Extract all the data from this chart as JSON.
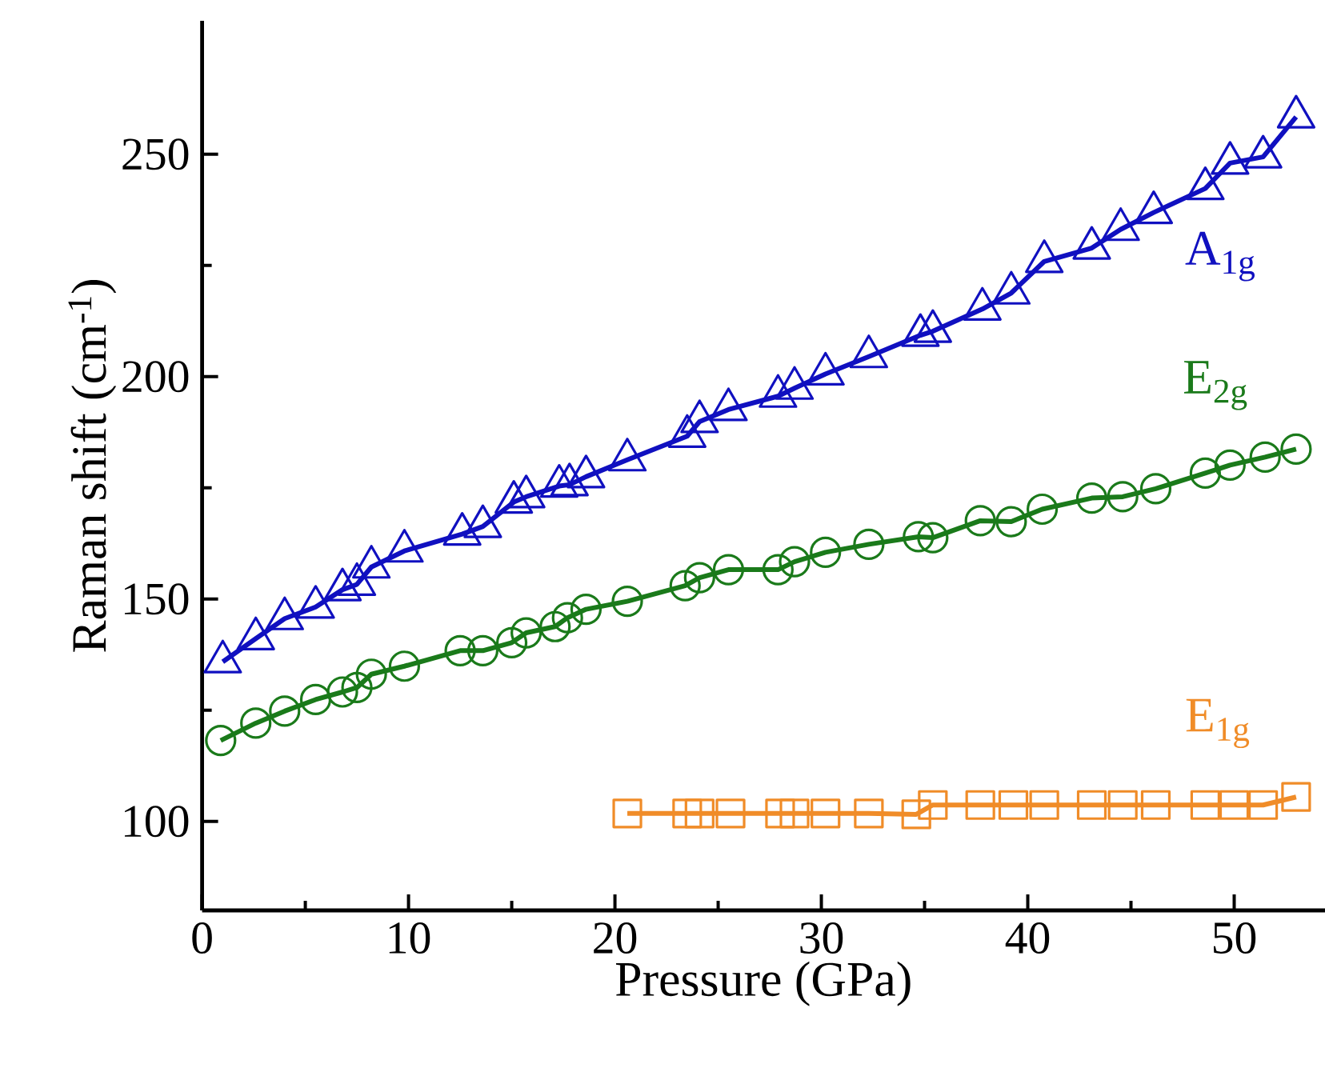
{
  "chart_data": {
    "type": "line",
    "xlabel": "Pressure (GPa)",
    "ylabel": "Raman shift (cm$^{-1}$)",
    "xlim": [
      0,
      54.4
    ],
    "ylim": [
      80,
      280
    ],
    "xticks": [
      0,
      10,
      20,
      30,
      40,
      50
    ],
    "yticks": [
      100,
      150,
      200,
      250
    ],
    "grid": false,
    "line_style": "solid",
    "series": [
      {
        "name": "A$_{1g}$",
        "color": "#1010c0",
        "marker": "triangle",
        "x": [
          1.0,
          2.6,
          4.0,
          5.5,
          6.8,
          7.5,
          8.2,
          9.8,
          12.6,
          13.6,
          15.1,
          15.7,
          17.3,
          17.8,
          18.6,
          20.6,
          23.5,
          24.1,
          25.5,
          27.9,
          28.7,
          30.2,
          32.3,
          34.8,
          35.4,
          37.8,
          39.2,
          40.8,
          43.1,
          44.5,
          46.1,
          48.6,
          49.8,
          51.4,
          53.0
        ],
        "values": [
          135.9,
          141.1,
          145.6,
          148.2,
          152.1,
          153.3,
          157.2,
          160.8,
          164.6,
          166.3,
          171.8,
          173,
          175.4,
          175.7,
          177.5,
          181.3,
          186.6,
          189.9,
          192.6,
          195.6,
          197.4,
          200.6,
          204.5,
          209.3,
          210.2,
          215.2,
          218.8,
          225.9,
          228.9,
          233.1,
          236.9,
          242.3,
          248.0,
          249.4,
          258.4
        ]
      },
      {
        "name": "E$_{2g}$",
        "color": "#1a7a1a",
        "marker": "circle",
        "x": [
          0.9,
          2.6,
          4.0,
          5.5,
          6.8,
          7.5,
          8.2,
          9.8,
          12.5,
          13.6,
          15.0,
          15.7,
          17.1,
          17.7,
          18.6,
          20.6,
          23.4,
          24.1,
          25.5,
          27.9,
          28.7,
          30.2,
          32.3,
          34.7,
          35.4,
          37.7,
          39.2,
          40.7,
          43.1,
          44.6,
          46.2,
          48.6,
          49.8,
          51.5,
          53.0
        ],
        "values": [
          118.2,
          122.1,
          124.8,
          127.4,
          129.1,
          130.1,
          133.1,
          134.9,
          138.4,
          138.4,
          140.2,
          142.4,
          143.8,
          145.8,
          147.7,
          149.5,
          153.0,
          154.8,
          156.6,
          156.6,
          158.4,
          160.5,
          162.3,
          164.0,
          163.8,
          167.6,
          167.4,
          170.2,
          172.7,
          173.0,
          174.8,
          178.3,
          180.1,
          181.9,
          183.7
        ]
      },
      {
        "name": "E$_{1g}$",
        "color": "#f08c28",
        "marker": "square",
        "x": [
          20.6,
          23.5,
          24.1,
          25.6,
          28.0,
          28.7,
          30.2,
          32.3,
          34.6,
          35.4,
          37.7,
          39.3,
          40.8,
          43.1,
          44.6,
          46.2,
          48.6,
          50.0,
          51.4,
          53.0
        ],
        "values": [
          101.8,
          101.8,
          101.8,
          101.8,
          101.8,
          101.8,
          101.8,
          101.8,
          101.6,
          103.7,
          103.7,
          103.7,
          103.7,
          103.7,
          103.7,
          103.7,
          103.7,
          103.7,
          103.7,
          105.5
        ]
      }
    ]
  }
}
